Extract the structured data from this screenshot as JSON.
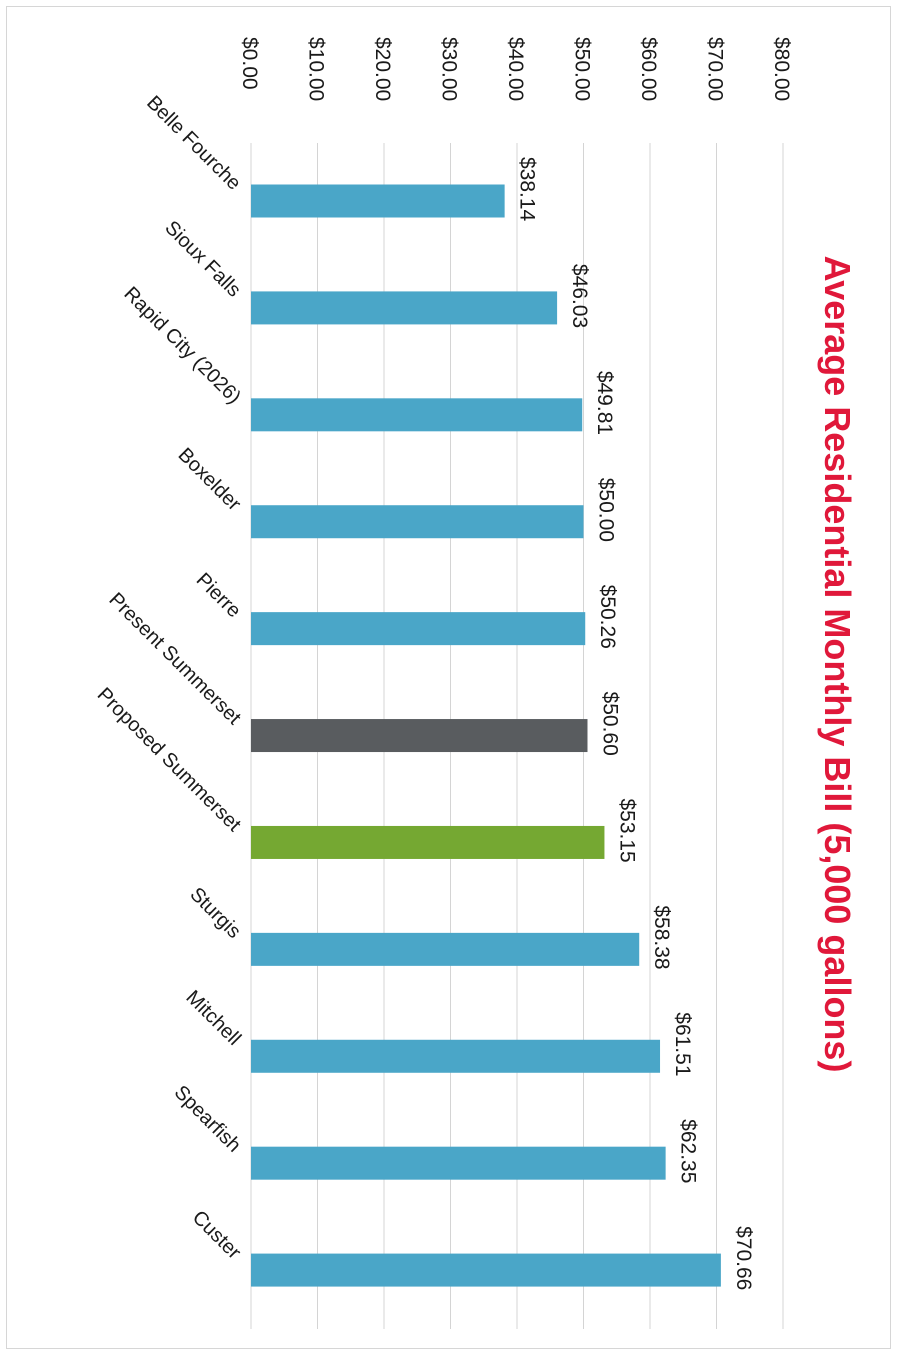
{
  "chart_data": {
    "type": "bar",
    "title": "Average Residential Monthly Bill (5,000 gallons)",
    "xlabel": "",
    "ylabel": "",
    "ylim": [
      0,
      80
    ],
    "tick_labels": [
      "$0.00",
      "$10.00",
      "$20.00",
      "$30.00",
      "$40.00",
      "$50.00",
      "$60.00",
      "$70.00",
      "$80.00"
    ],
    "categories": [
      "Belle Fourche",
      "Sioux Falls",
      "Rapid City (2026)",
      "Boxelder",
      "Pierre",
      "Present Summerset",
      "Proposed Summerset",
      "Sturgis",
      "Mitchell",
      "Spearfish",
      "Custer"
    ],
    "values": [
      38.14,
      46.03,
      49.81,
      50.0,
      50.26,
      50.6,
      53.15,
      58.38,
      61.51,
      62.35,
      70.66
    ],
    "data_labels": [
      "$38.14",
      "$46.03",
      "$49.81",
      "$50.00",
      "$50.26",
      "$50.60",
      "$53.15",
      "$58.38",
      "$61.51",
      "$62.35",
      "$70.66"
    ],
    "bar_colors": [
      "#4aa6c8",
      "#4aa6c8",
      "#4aa6c8",
      "#4aa6c8",
      "#4aa6c8",
      "#595c5f",
      "#75a832",
      "#4aa6c8",
      "#4aa6c8",
      "#4aa6c8",
      "#4aa6c8"
    ],
    "title_color": "#e0183a",
    "grid": true,
    "legend": "none",
    "orientation": "rotated 90 degrees clockwise"
  }
}
